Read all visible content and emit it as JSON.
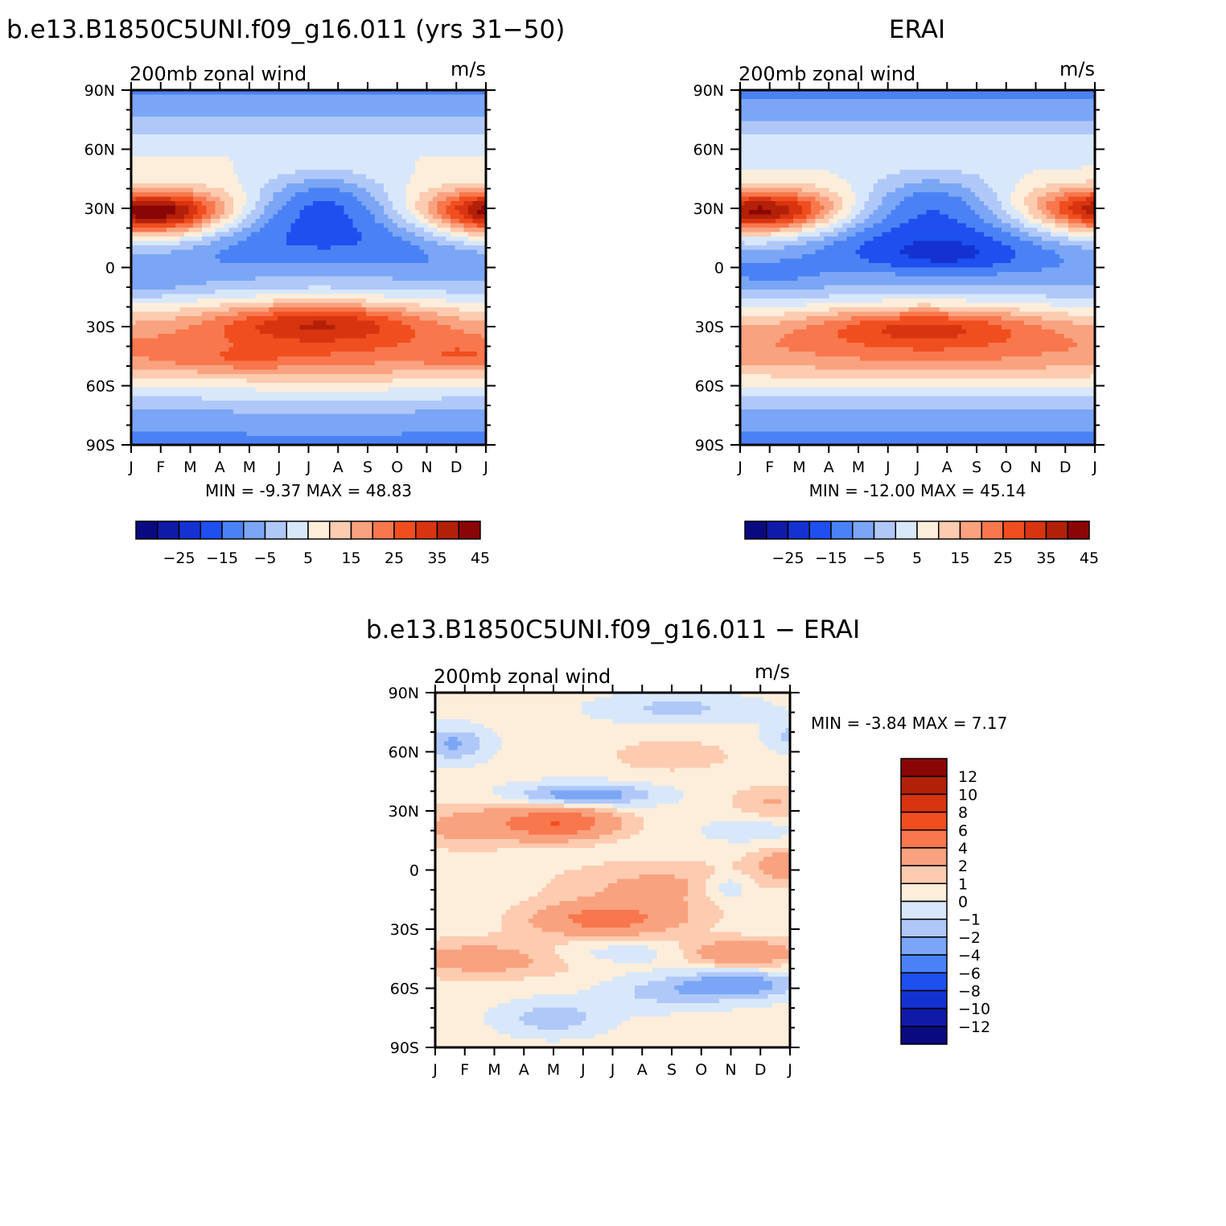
{
  "title_top_left": "b.e13.B1850C5UNI.f09_g16.011 (yrs 31-50)",
  "title_top_right": "ERAI",
  "title_bottom": "b.e13.B1850C5UNI.f09_g16.011 - ERAI",
  "months": [
    "J",
    "F",
    "M",
    "A",
    "M",
    "J",
    "J",
    "A",
    "S",
    "O",
    "N",
    "D",
    "J"
  ],
  "lat_labels": [
    "90N",
    "60N",
    "30N",
    "0",
    "30S",
    "60S",
    "90S"
  ],
  "chart_data": [
    {
      "type": "heatmap",
      "id": "model",
      "title": "b.e13.B1850C5UNI.f09_g16.011 (yrs 31-50)",
      "subtitle": "200mb zonal wind",
      "units": "m/s",
      "stats_text": "MIN =   -9.37 MAX =   48.83",
      "min": -9.37,
      "max": 48.83,
      "x": [
        "J",
        "F",
        "M",
        "A",
        "M",
        "J",
        "J",
        "A",
        "S",
        "O",
        "N",
        "D",
        "J"
      ],
      "y_labels": [
        "90N",
        "60N",
        "30N",
        "0",
        "30S",
        "60S",
        "90S"
      ],
      "colorbar_levels": [
        -30,
        -25,
        -20,
        -15,
        -10,
        -5,
        0,
        5,
        10,
        15,
        20,
        25,
        30,
        35,
        40,
        45,
        50
      ],
      "colorbar_labels": [
        "-25",
        "-15",
        "-5",
        "5",
        "15",
        "25",
        "35",
        "45"
      ]
    },
    {
      "type": "heatmap",
      "id": "obs",
      "title": "ERAI",
      "subtitle": "200mb zonal wind",
      "units": "m/s",
      "stats_text": "MIN =  -12.00 MAX =   45.14",
      "min": -12.0,
      "max": 45.14,
      "x": [
        "J",
        "F",
        "M",
        "A",
        "M",
        "J",
        "J",
        "A",
        "S",
        "O",
        "N",
        "D",
        "J"
      ],
      "y_labels": [
        "90N",
        "60N",
        "30N",
        "0",
        "30S",
        "60S",
        "90S"
      ],
      "colorbar_levels": [
        -30,
        -25,
        -20,
        -15,
        -10,
        -5,
        0,
        5,
        10,
        15,
        20,
        25,
        30,
        35,
        40,
        45,
        50
      ],
      "colorbar_labels": [
        "-25",
        "-15",
        "-5",
        "5",
        "15",
        "25",
        "35",
        "45"
      ]
    },
    {
      "type": "heatmap",
      "id": "diff",
      "title": "b.e13.B1850C5UNI.f09_g16.011 - ERAI",
      "subtitle": "200mb zonal wind",
      "units": "m/s",
      "stats_text": "MIN =   -3.84 MAX =    7.17",
      "min": -3.84,
      "max": 7.17,
      "x": [
        "J",
        "F",
        "M",
        "A",
        "M",
        "J",
        "J",
        "A",
        "S",
        "O",
        "N",
        "D",
        "J"
      ],
      "y_labels": [
        "90N",
        "60N",
        "30N",
        "0",
        "30S",
        "60S",
        "90S"
      ],
      "colorbar_levels": [
        -14,
        -12,
        -10,
        -8,
        -6,
        -4,
        -2,
        -1,
        0,
        1,
        2,
        4,
        6,
        8,
        10,
        12,
        14
      ],
      "colorbar_labels": [
        "12",
        "10",
        "8",
        "6",
        "4",
        "2",
        "1",
        "0",
        "-1",
        "-2",
        "-4",
        "-6",
        "-8",
        "-10",
        "-12"
      ]
    }
  ],
  "colors": {
    "palette": [
      "#0a0a80",
      "#0f1aa8",
      "#1432d2",
      "#1e50f0",
      "#4a82f5",
      "#7aa6f5",
      "#b0c8f8",
      "#d8e8fa",
      "#fdeedb",
      "#fccbb0",
      "#f9a27f",
      "#f8774d",
      "#f04e1f",
      "#d83410",
      "#b22008",
      "#8a0605"
    ]
  }
}
